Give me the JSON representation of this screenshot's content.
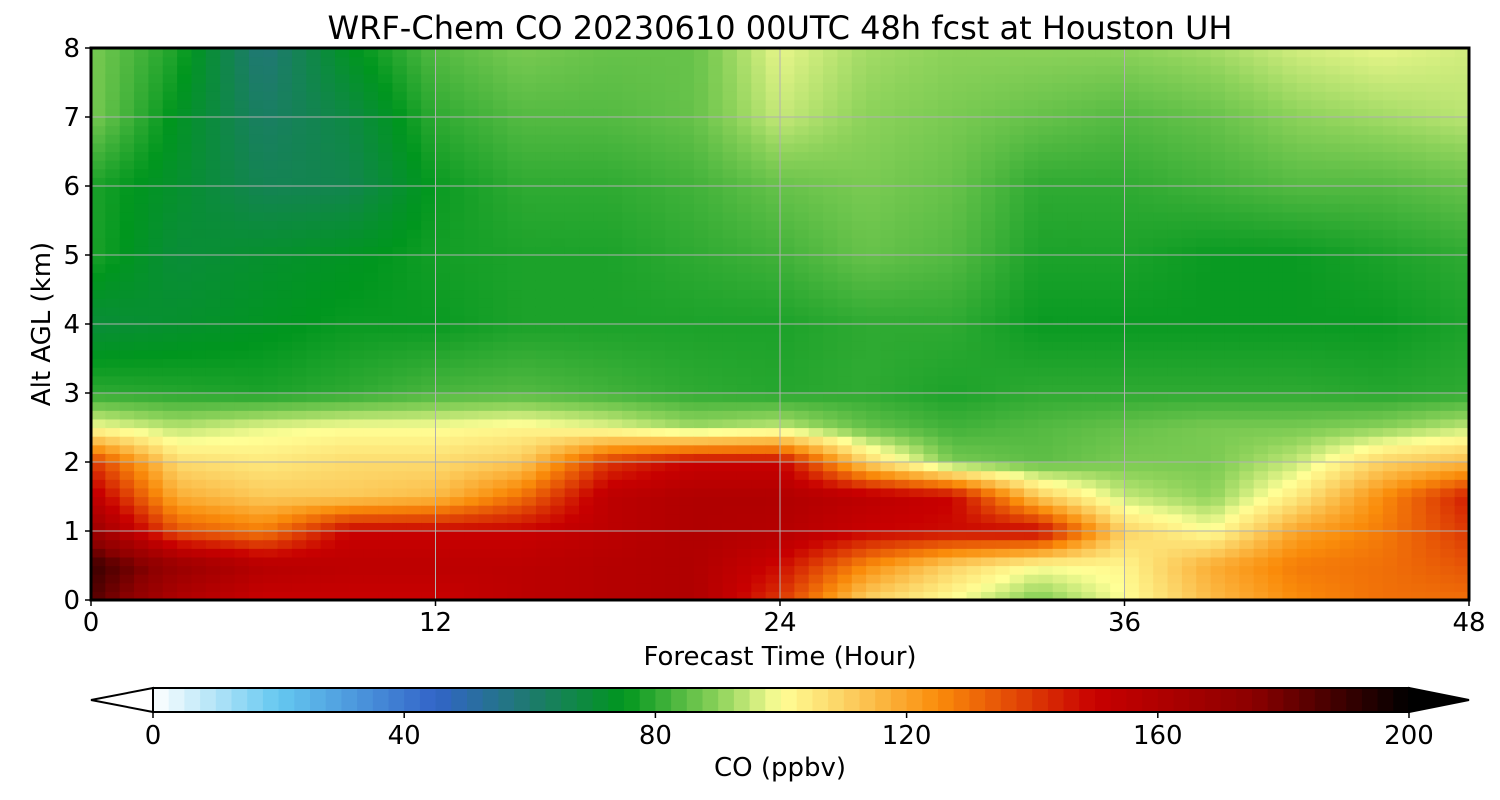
{
  "chart_data": {
    "type": "heatmap",
    "title": "WRF-Chem CO  20230610 00UTC 48h fcst at Houston UH",
    "xlabel": "Forecast Time (Hour)",
    "ylabel": "Alt AGL (km)",
    "xlim": [
      0,
      48
    ],
    "ylim": [
      0,
      8
    ],
    "x_ticks": [
      "0",
      "12",
      "24",
      "36",
      "48"
    ],
    "y_ticks": [
      "0",
      "1",
      "2",
      "3",
      "4",
      "5",
      "6",
      "7",
      "8"
    ],
    "grid": true,
    "x": [
      0,
      3,
      6,
      9,
      12,
      15,
      18,
      21,
      24,
      27,
      30,
      33,
      36,
      39,
      42,
      45,
      48
    ],
    "y": [
      0,
      0.5,
      1,
      1.5,
      2,
      2.5,
      3,
      4,
      5,
      6,
      7,
      8
    ],
    "z": [
      [
        185,
        160,
        150,
        150,
        150,
        155,
        158,
        160,
        140,
        110,
        100,
        88,
        100,
        115,
        125,
        130,
        130
      ],
      [
        190,
        170,
        158,
        155,
        155,
        155,
        158,
        160,
        148,
        125,
        110,
        100,
        102,
        118,
        128,
        130,
        135
      ],
      [
        170,
        135,
        128,
        150,
        150,
        150,
        155,
        160,
        158,
        150,
        148,
        150,
        110,
        100,
        120,
        128,
        140
      ],
      [
        155,
        118,
        112,
        112,
        115,
        130,
        155,
        160,
        160,
        155,
        150,
        112,
        95,
        90,
        105,
        125,
        145
      ],
      [
        140,
        108,
        105,
        108,
        108,
        112,
        140,
        150,
        150,
        110,
        88,
        85,
        88,
        88,
        95,
        110,
        115
      ],
      [
        100,
        94,
        98,
        100,
        100,
        102,
        98,
        92,
        95,
        86,
        82,
        84,
        86,
        88,
        88,
        90,
        95
      ],
      [
        80,
        79,
        78,
        80,
        83,
        84,
        82,
        80,
        79,
        80,
        78,
        80,
        80,
        80,
        80,
        79,
        80
      ],
      [
        70,
        72,
        74,
        76,
        76,
        78,
        78,
        78,
        78,
        80,
        80,
        76,
        76,
        76,
        76,
        76,
        78
      ],
      [
        78,
        70,
        72,
        74,
        77,
        78,
        78,
        80,
        82,
        86,
        84,
        78,
        78,
        76,
        76,
        78,
        80
      ],
      [
        78,
        72,
        65,
        66,
        76,
        80,
        80,
        82,
        86,
        88,
        86,
        80,
        80,
        82,
        84,
        84,
        86
      ],
      [
        88,
        74,
        62,
        68,
        80,
        84,
        84,
        86,
        95,
        90,
        88,
        86,
        84,
        86,
        90,
        92,
        94
      ],
      [
        88,
        78,
        58,
        74,
        84,
        88,
        86,
        86,
        98,
        92,
        90,
        90,
        90,
        92,
        96,
        98,
        96
      ]
    ],
    "colorbar": {
      "label": "CO  (ppbv)",
      "range": [
        0,
        200
      ],
      "ticks": [
        "0",
        "40",
        "80",
        "120",
        "160",
        "200"
      ],
      "extend": "both",
      "colors": [
        {
          "v": 0,
          "c": "#ffffff"
        },
        {
          "v": 20,
          "c": "#64c8f0"
        },
        {
          "v": 45,
          "c": "#3264c8"
        },
        {
          "v": 60,
          "c": "#1e7a6e"
        },
        {
          "v": 75,
          "c": "#00961e"
        },
        {
          "v": 90,
          "c": "#8cd25a"
        },
        {
          "v": 100,
          "c": "#ffff96"
        },
        {
          "v": 110,
          "c": "#fcd264"
        },
        {
          "v": 125,
          "c": "#fa8c0a"
        },
        {
          "v": 150,
          "c": "#c80000"
        },
        {
          "v": 175,
          "c": "#8c0000"
        },
        {
          "v": 200,
          "c": "#000000"
        }
      ]
    }
  }
}
